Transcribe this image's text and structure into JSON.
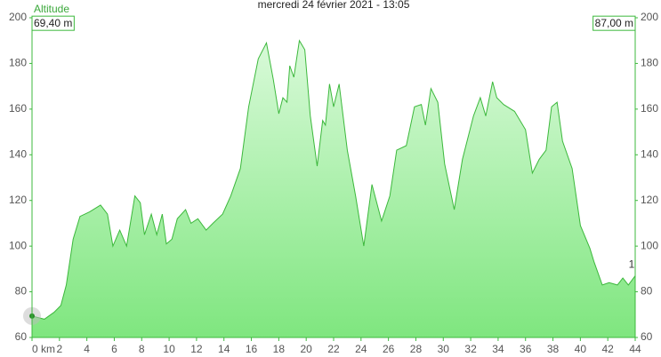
{
  "chart_data": {
    "type": "area",
    "title": "mercredi 24 février 2021 - 13:05",
    "y_label": "Altitude",
    "start_label": "69,40 m",
    "end_label": "87,00 m",
    "marker_label": "1",
    "x": [
      0,
      0.9,
      1.6,
      2.1,
      2.5,
      3.0,
      3.5,
      4.2,
      5.0,
      5.5,
      5.9,
      6.4,
      6.9,
      7.5,
      7.9,
      8.2,
      8.7,
      9.1,
      9.5,
      9.8,
      10.2,
      10.6,
      11.2,
      11.6,
      12.1,
      12.7,
      13.2,
      13.9,
      14.5,
      15.2,
      15.8,
      16.5,
      17.1,
      17.6,
      18.0,
      18.3,
      18.6,
      18.8,
      19.1,
      19.5,
      19.9,
      20.3,
      20.8,
      21.2,
      21.4,
      21.7,
      22.0,
      22.4,
      23.0,
      23.6,
      24.2,
      24.8,
      25.5,
      26.1,
      26.6,
      27.3,
      27.9,
      28.4,
      28.7,
      29.1,
      29.6,
      30.1,
      30.8,
      31.4,
      32.2,
      32.7,
      33.1,
      33.6,
      33.9,
      34.4,
      35.2,
      36.0,
      36.5,
      37.0,
      37.5,
      37.9,
      38.3,
      38.7,
      39.4,
      40.0,
      40.7,
      41.0,
      41.6,
      42.1,
      42.7,
      43.1,
      43.5,
      44.0
    ],
    "series": [
      {
        "name": "Altitude",
        "color": "#3cb83c",
        "values": [
          69.4,
          68,
          71,
          74,
          83,
          103,
          113,
          115,
          118,
          114,
          100,
          107,
          100,
          122,
          119,
          105,
          114,
          105,
          114,
          101,
          103,
          112,
          116,
          110,
          112,
          107,
          110,
          114,
          122,
          134,
          161,
          182,
          189,
          173,
          158,
          165,
          163,
          179,
          174,
          190,
          186,
          157,
          135,
          155,
          153,
          171,
          161,
          171,
          142,
          122,
          100,
          127,
          111,
          122,
          142,
          144,
          161,
          162,
          153,
          169,
          163,
          136,
          116,
          138,
          157,
          165,
          157,
          172,
          165,
          162,
          159,
          151,
          132,
          138,
          142,
          161,
          163,
          146,
          134,
          109,
          99,
          93,
          83,
          84,
          83,
          86,
          83,
          87
        ]
      }
    ],
    "xlim": [
      0,
      44
    ],
    "xticks": [
      {
        "value": 0,
        "label": "0 km"
      },
      2,
      4,
      6,
      8,
      10,
      12,
      14,
      16,
      18,
      20,
      22,
      24,
      26,
      28,
      30,
      32,
      34,
      36,
      38,
      40,
      42,
      44
    ],
    "ylim": [
      60,
      200
    ],
    "yticks": [
      60,
      80,
      100,
      120,
      140,
      160,
      180,
      200
    ],
    "y2lim": [
      60,
      200
    ],
    "y2ticks": [
      60,
      80,
      100,
      120,
      140,
      160,
      180,
      200
    ]
  }
}
